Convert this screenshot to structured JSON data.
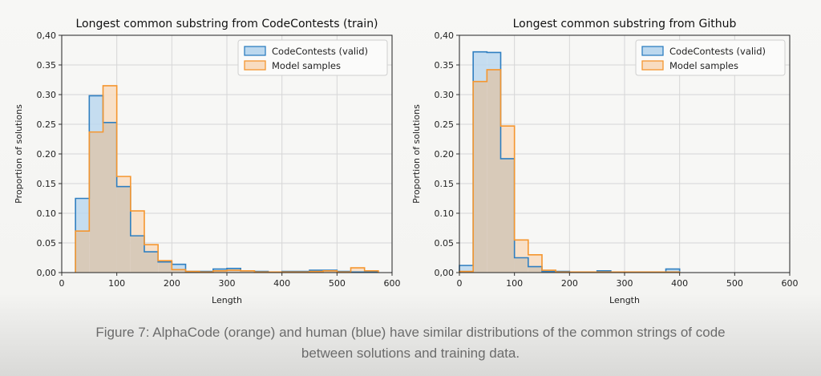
{
  "caption": {
    "line1": "Figure 7: AlphaCode (orange) and human (blue) have similar distributions of the common strings of code",
    "line2": "between solutions and training data."
  },
  "colors": {
    "human_edge": "#2f7fc1",
    "human_fill": "#bcd8ee",
    "model_edge": "#f5962f",
    "model_fill": "#f8dcc0",
    "overlap_edge": "#8c8c8c",
    "overlap_fill": "#d8cab9"
  },
  "chart_data": [
    {
      "type": "histogram",
      "title": "Longest common substring from CodeContests (train)",
      "xlabel": "Length",
      "ylabel": "Proportion of solutions",
      "xlim": [
        0,
        600
      ],
      "ylim": [
        0,
        0.4
      ],
      "xticks": [
        "0",
        "100",
        "200",
        "300",
        "400",
        "500",
        "600"
      ],
      "yticks": [
        "0,00",
        "0.05",
        "0.10",
        "0.15",
        "0.20",
        "0.25",
        "0.30",
        "0.35",
        "0,40"
      ],
      "grid": true,
      "legend": "top-right",
      "bins": [
        25,
        50,
        75,
        100,
        125,
        150,
        175,
        200,
        225,
        250,
        275,
        300,
        325,
        350,
        375,
        400,
        425,
        450,
        475,
        500,
        525,
        550,
        575
      ],
      "series": [
        {
          "name": "CodeContests (valid)",
          "values": [
            0.125,
            0.298,
            0.253,
            0.145,
            0.062,
            0.035,
            0.018,
            0.014,
            0.002,
            0.002,
            0.006,
            0.007,
            0.003,
            0.002,
            0.001,
            0.002,
            0.002,
            0.004,
            0.004,
            0.002,
            0.001,
            0.001
          ]
        },
        {
          "name": "Model samples",
          "values": [
            0.07,
            0.237,
            0.315,
            0.162,
            0.104,
            0.047,
            0.02,
            0.005,
            0.002,
            0.001,
            0.003,
            0.004,
            0.003,
            0.001,
            0.001,
            0.001,
            0.001,
            0.002,
            0.003,
            0.001,
            0.008,
            0.003
          ]
        }
      ]
    },
    {
      "type": "histogram",
      "title": "Longest common substring from Github",
      "xlabel": "Length",
      "ylabel": "Proportion of solutions",
      "xlim": [
        0,
        600
      ],
      "ylim": [
        0,
        0.4
      ],
      "xticks": [
        "0",
        "100",
        "200",
        "300",
        "400",
        "500",
        "600"
      ],
      "yticks": [
        "0,00",
        "0.05",
        "0.10",
        "0.15",
        "0.20",
        "0.25",
        "0.30",
        "0.35",
        "0,40"
      ],
      "grid": true,
      "legend": "top-right",
      "bins": [
        0,
        25,
        50,
        75,
        100,
        125,
        150,
        175,
        200,
        225,
        250,
        275,
        300,
        325,
        350,
        375,
        400
      ],
      "series": [
        {
          "name": "CodeContests (valid)",
          "values": [
            0.012,
            0.372,
            0.371,
            0.192,
            0.025,
            0.01,
            0.002,
            0.002,
            0.001,
            0.001,
            0.003,
            0.001,
            0.001,
            0.001,
            0.001,
            0.006
          ]
        },
        {
          "name": "Model samples",
          "values": [
            0.002,
            0.322,
            0.342,
            0.247,
            0.055,
            0.03,
            0.004,
            0.001,
            0.001,
            0.001,
            0.001,
            0.001,
            0.001,
            0.001,
            0.001,
            0.001
          ]
        }
      ]
    }
  ]
}
